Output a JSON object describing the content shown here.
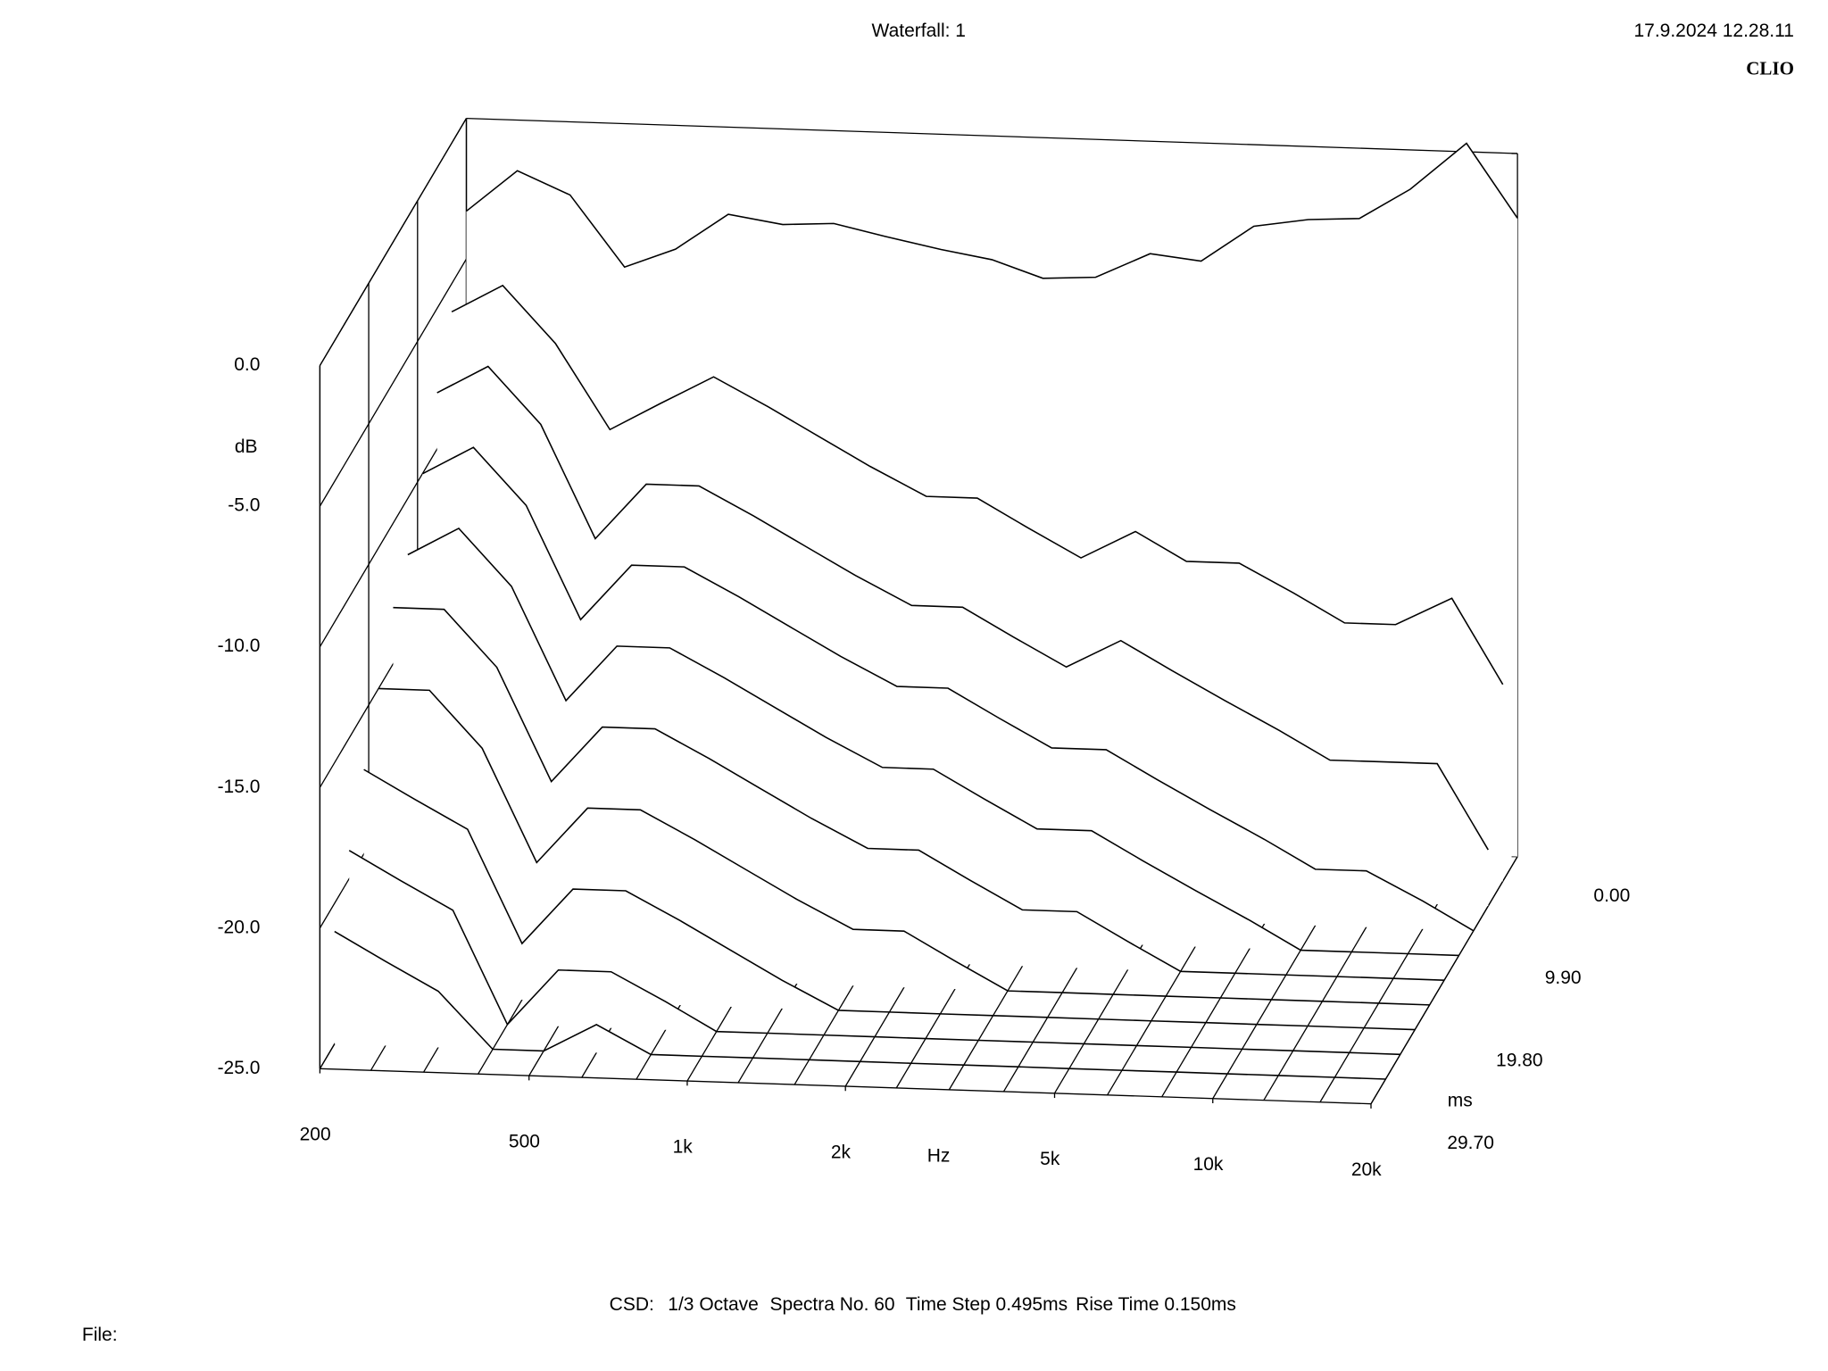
{
  "chart_data": {
    "type": "waterfall",
    "title": "Waterfall: 1",
    "timestamp": "17.9.2024 12.28.11",
    "brand": "CLIO",
    "ylabel": "dB",
    "xlabel": "Hz",
    "zlabel": "ms",
    "footer": [
      "CSD:",
      "1/3 Octave",
      "Spectra No. 60",
      "Time Step 0.495ms",
      "Rise Time 0.150ms"
    ],
    "file_label": "File:",
    "xscale": "log",
    "xlim": [
      200,
      20000
    ],
    "xticks": [
      200,
      500,
      {
        "value": 1000,
        "label": "1k"
      },
      {
        "value": 2000,
        "label": "2k"
      },
      {
        "value": 5000,
        "label": "5k"
      },
      {
        "value": 10000,
        "label": "10k"
      },
      {
        "value": 20000,
        "label": "20k"
      }
    ],
    "ylim": [
      -25,
      0
    ],
    "yticks": [
      {
        "value": 0,
        "label": "0.0"
      },
      {
        "value": -5,
        "label": "-5.0"
      },
      {
        "value": -10,
        "label": "-10.0"
      },
      {
        "value": -15,
        "label": "-15.0"
      },
      {
        "value": -20,
        "label": "-20.0"
      },
      {
        "value": -25,
        "label": "-25.0"
      }
    ],
    "zlim": [
      0,
      29.7
    ],
    "zticks": [
      {
        "value": 0,
        "label": "0.00"
      },
      {
        "value": 9.9,
        "label": "9.90"
      },
      {
        "value": 19.8,
        "label": "19.80"
      },
      {
        "value": 29.7,
        "label": "29.70"
      }
    ],
    "color": "#000000",
    "x": [
      200,
      250,
      315,
      400,
      500,
      630,
      800,
      1000,
      1250,
      1600,
      2000,
      2500,
      3150,
      4000,
      5000,
      6300,
      8000,
      10000,
      12500,
      16000,
      20000
    ],
    "z": [
      0,
      2.97,
      5.94,
      8.91,
      11.88,
      14.85,
      17.82,
      20.79,
      23.76,
      26.73
    ],
    "series": [
      {
        "values": [
          -3.3,
          -1.8,
          -2.6,
          -5.1,
          -4.4,
          -3.1,
          -3.4,
          -3.3,
          -3.7,
          -4.1,
          -4.4,
          -5.0,
          -4.9,
          -4.0,
          -4.2,
          -2.9,
          -2.6,
          -2.5,
          -1.4,
          0.3,
          -2.3
        ]
      },
      {
        "values": [
          -6,
          -5,
          -7,
          -10,
          -9,
          -8,
          -9,
          -10,
          -11,
          -12,
          -12,
          -13,
          -14,
          -13,
          -14,
          -14,
          -15,
          -16,
          -16,
          -15,
          -18
        ]
      },
      {
        "values": [
          -8,
          -7,
          -9,
          -13,
          -11,
          -11,
          -12,
          -13,
          -14,
          -15,
          -15,
          -16,
          -17,
          -16,
          -17,
          -18,
          -19,
          -20,
          -20,
          -20,
          -23
        ]
      },
      {
        "values": [
          -10,
          -9,
          -11,
          -15,
          -13,
          -13,
          -14,
          -15,
          -16,
          -17,
          -17,
          -18,
          -19,
          -19,
          -20,
          -21,
          -22,
          -23,
          -23,
          -24,
          -25
        ]
      },
      {
        "values": [
          -12,
          -11,
          -13,
          -17,
          -15,
          -15,
          -16,
          -17,
          -18,
          -19,
          -19,
          -20,
          -21,
          -21,
          -22,
          -23,
          -24,
          -25,
          -25,
          -25,
          -25
        ]
      },
      {
        "values": [
          -13,
          -13,
          -15,
          -19,
          -17,
          -17,
          -18,
          -19,
          -20,
          -21,
          -21,
          -22,
          -23,
          -23,
          -24,
          -25,
          -25,
          -25,
          -25,
          -25,
          -25
        ]
      },
      {
        "values": [
          -15,
          -15,
          -17,
          -21,
          -19,
          -19,
          -20,
          -21,
          -22,
          -23,
          -23,
          -24,
          -25,
          -25,
          -25,
          -25,
          -25,
          -25,
          -25,
          -25,
          -25
        ]
      },
      {
        "values": [
          -17,
          -18,
          -19,
          -23,
          -21,
          -21,
          -22,
          -23,
          -24,
          -25,
          -25,
          -25,
          -25,
          -25,
          -25,
          -25,
          -25,
          -25,
          -25,
          -25,
          -25
        ]
      },
      {
        "values": [
          -19,
          -20,
          -21,
          -25,
          -23,
          -23,
          -24,
          -25,
          -25,
          -25,
          -25,
          -25,
          -25,
          -25,
          -25,
          -25,
          -25,
          -25,
          -25,
          -25,
          -25
        ]
      },
      {
        "values": [
          -21,
          -22,
          -23,
          -25,
          -25,
          -24,
          -25,
          -25,
          -25,
          -25,
          -25,
          -25,
          -25,
          -25,
          -25,
          -25,
          -25,
          -25,
          -25,
          -25,
          -25
        ]
      }
    ]
  }
}
